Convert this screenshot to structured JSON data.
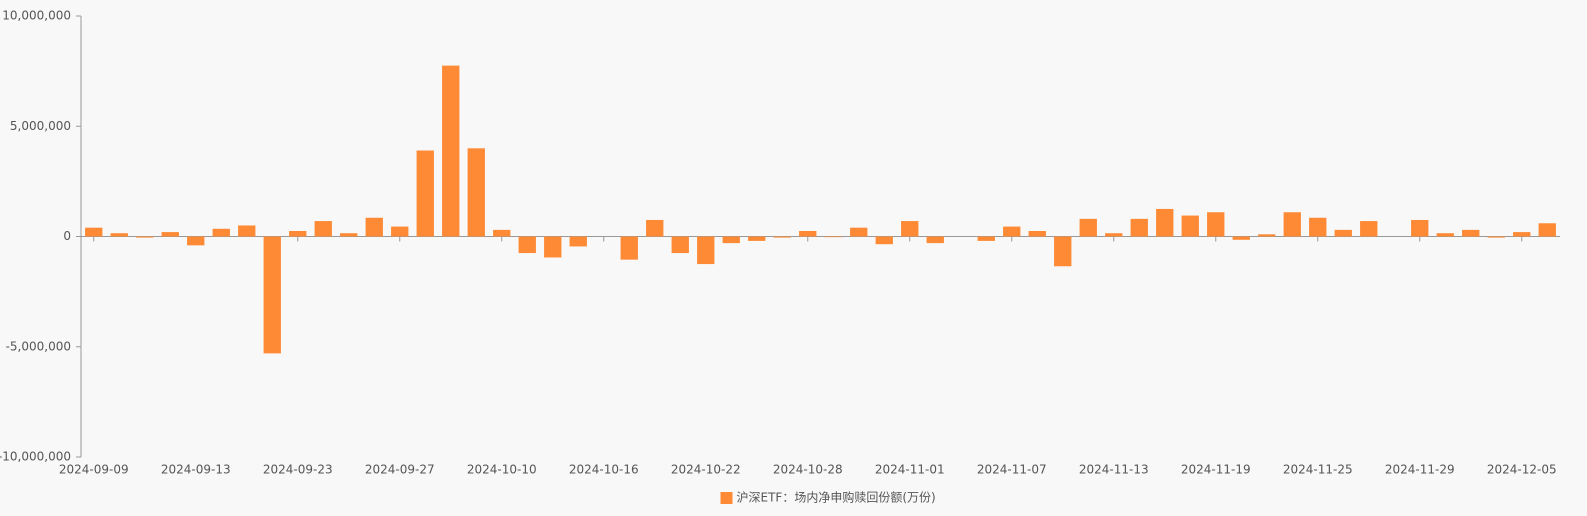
{
  "chart_data": {
    "type": "bar",
    "categories": [
      "2024-09-09",
      null,
      null,
      null,
      "2024-09-13",
      null,
      null,
      null,
      "2024-09-23",
      null,
      null,
      null,
      "2024-09-27",
      null,
      null,
      null,
      "2024-10-10",
      null,
      null,
      null,
      "2024-10-16",
      null,
      null,
      null,
      "2024-10-22",
      null,
      null,
      null,
      "2024-10-28",
      null,
      null,
      null,
      "2024-11-01",
      null,
      null,
      null,
      "2024-11-07",
      null,
      null,
      null,
      "2024-11-13",
      null,
      null,
      null,
      "2024-11-19",
      null,
      null,
      null,
      "2024-11-25",
      null,
      null,
      null,
      "2024-11-29",
      null,
      null,
      null,
      "2024-12-05",
      null
    ],
    "series": [
      {
        "name": "沪深ETF：场内净申购赎回份额(万份)",
        "color": "#ff8a35",
        "values": [
          400000,
          150000,
          -50000,
          200000,
          -400000,
          350000,
          500000,
          -5300000,
          250000,
          700000,
          150000,
          850000,
          450000,
          3900000,
          7750000,
          4000000,
          300000,
          -750000,
          -950000,
          -450000,
          0,
          -1050000,
          750000,
          -750000,
          -1250000,
          -300000,
          -200000,
          -50000,
          250000,
          -30000,
          400000,
          -350000,
          700000,
          -300000,
          0,
          -200000,
          450000,
          250000,
          -1350000,
          800000,
          150000,
          800000,
          1250000,
          950000,
          1100000,
          -150000,
          100000,
          1100000,
          850000,
          300000,
          700000,
          0,
          750000,
          150000,
          300000,
          -50000,
          200000,
          600000
        ]
      }
    ],
    "ylim": [
      -10000000,
      10000000
    ],
    "yticks": [
      {
        "value": -10000000,
        "label": "-10,000,000"
      },
      {
        "value": -5000000,
        "label": "-5,000,000"
      },
      0,
      {
        "value": 5000000,
        "label": "5,000,000"
      },
      {
        "value": 10000000,
        "label": "10,000,000"
      }
    ],
    "legend": "bottom"
  }
}
